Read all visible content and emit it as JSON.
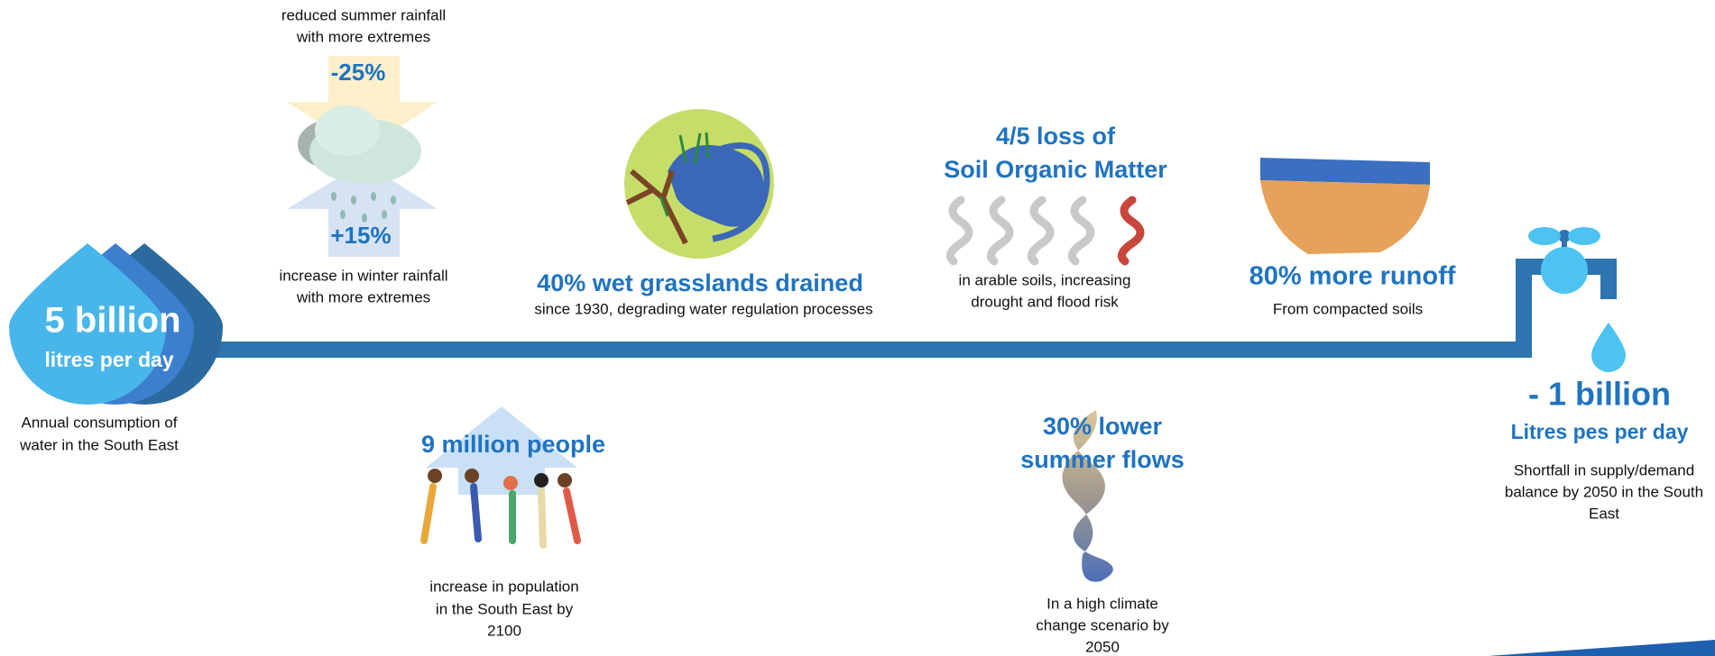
{
  "start": {
    "value": "5 billion",
    "unit": "litres per day",
    "caption": [
      "Annual consumption of",
      "water in the South East"
    ]
  },
  "rainfall": {
    "summer_caption": [
      "reduced summer rainfall",
      "with more extremes"
    ],
    "summer_change": "-25%",
    "winter_change": "+15%",
    "winter_caption": [
      "increase in winter rainfall",
      "with more extremes"
    ]
  },
  "grasslands": {
    "headline": "40% wet grasslands drained",
    "caption": "since 1930, degrading water regulation processes"
  },
  "soil": {
    "headline": [
      "4/5 loss of",
      "Soil Organic Matter"
    ],
    "caption": [
      "in arable soils, increasing",
      "drought and flood risk"
    ]
  },
  "runoff": {
    "headline": "80% more runoff",
    "caption": "From compacted soils"
  },
  "end": {
    "value": "- 1 billion",
    "unit": "Litres pes per day",
    "caption": [
      "Shortfall in supply/demand",
      "balance by 2050 in the South",
      "East"
    ]
  },
  "population": {
    "headline": "9 million people",
    "caption": [
      "increase in population",
      "in the South East by",
      "2100"
    ]
  },
  "flows": {
    "headline": [
      "30% lower",
      "summer flows"
    ],
    "caption": [
      "In a high climate",
      "change scenario by",
      "2050"
    ]
  }
}
